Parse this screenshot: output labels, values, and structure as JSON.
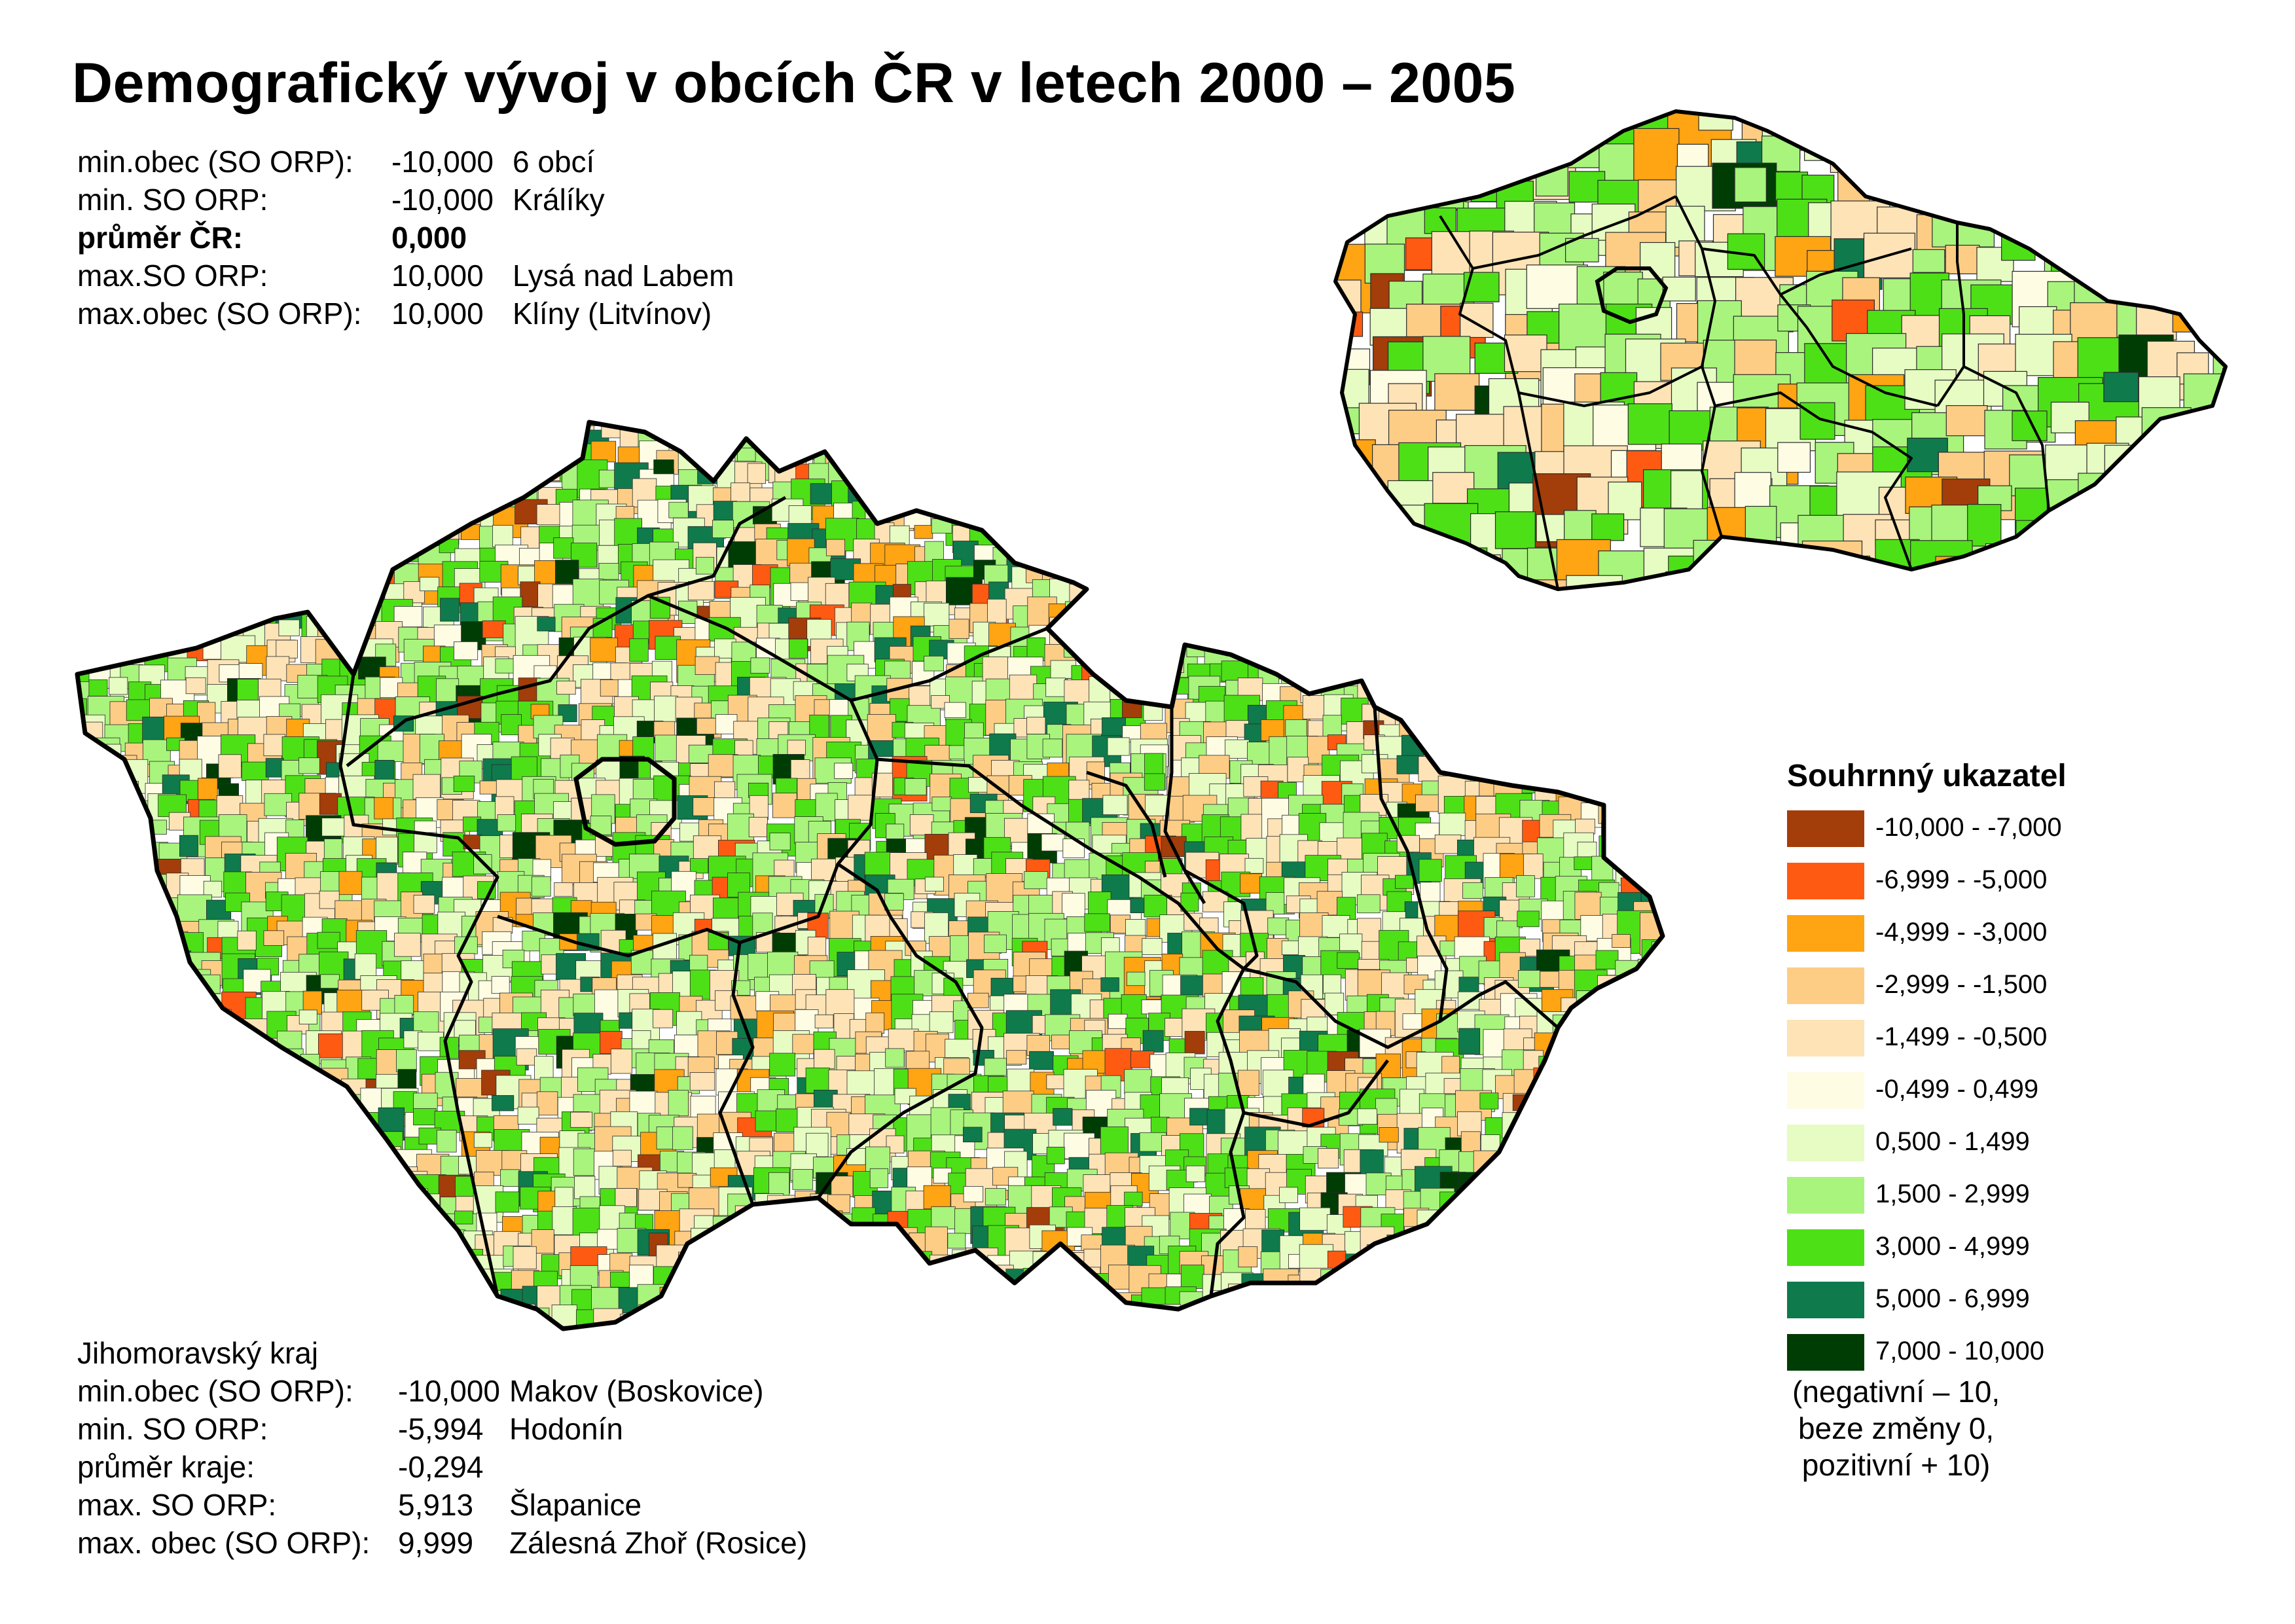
{
  "title": "Demografický vývoj v obcích ČR v letech 2000 – 2005",
  "national_stats": [
    {
      "label": "min.obec (SO ORP):",
      "value": "-10,000",
      "name": "6 obcí",
      "bold": false
    },
    {
      "label": "min. SO ORP:",
      "value": "-10,000",
      "name": "Králíky",
      "bold": false
    },
    {
      "label": "průměr ČR:",
      "value": "0,000",
      "name": "",
      "bold": true
    },
    {
      "label": "max.SO ORP:",
      "value": "10,000",
      "name": "Lysá nad Labem",
      "bold": false
    },
    {
      "label": "max.obec (SO ORP):",
      "value": "10,000",
      "name": "Klíny (Litvínov)",
      "bold": false
    }
  ],
  "regional_stats": {
    "region": "Jihomoravský kraj",
    "rows": [
      {
        "label": "min.obec (SO ORP):",
        "value": "-10,000",
        "name": "Makov (Boskovice)"
      },
      {
        "label": "min. SO ORP:",
        "value": "-5,994",
        "name": "Hodonín"
      },
      {
        "label": "průměr kraje:",
        "value": "-0,294",
        "name": ""
      },
      {
        "label": "max. SO ORP:",
        "value": "5,913",
        "name": "Šlapanice"
      },
      {
        "label": "max. obec (SO ORP):",
        "value": "9,999",
        "name": "Zálesná Zhoř (Rosice)"
      }
    ]
  },
  "legend": {
    "title": "Souhrnný ukazatel",
    "items": [
      {
        "range": "-10,000 -  -7,000",
        "color": "#a33d0a"
      },
      {
        "range": "-6,999 -  -5,000",
        "color": "#ff5a12"
      },
      {
        "range": "-4,999 -  -3,000",
        "color": "#ffa412"
      },
      {
        "range": "-2,999 -  -1,500",
        "color": "#fdcd85"
      },
      {
        "range": "-1,499 -  -0,500",
        "color": "#fde3b6"
      },
      {
        "range": "-0,499 -   0,499",
        "color": "#fefde4"
      },
      {
        "range": "0,500 -   1,499",
        "color": "#e6fcc3"
      },
      {
        "range": "1,500 -   2,999",
        "color": "#a8f47c"
      },
      {
        "range": "3,000 -   4,999",
        "color": "#4ee016"
      },
      {
        "range": "5,000 -   6,999",
        "color": "#0f7a4c"
      },
      {
        "range": "7,000 - 10,000",
        "color": "#003d05"
      }
    ],
    "note": [
      "(negativní – 10,",
      "beze změny 0,",
      "pozitivní + 10)"
    ]
  }
}
